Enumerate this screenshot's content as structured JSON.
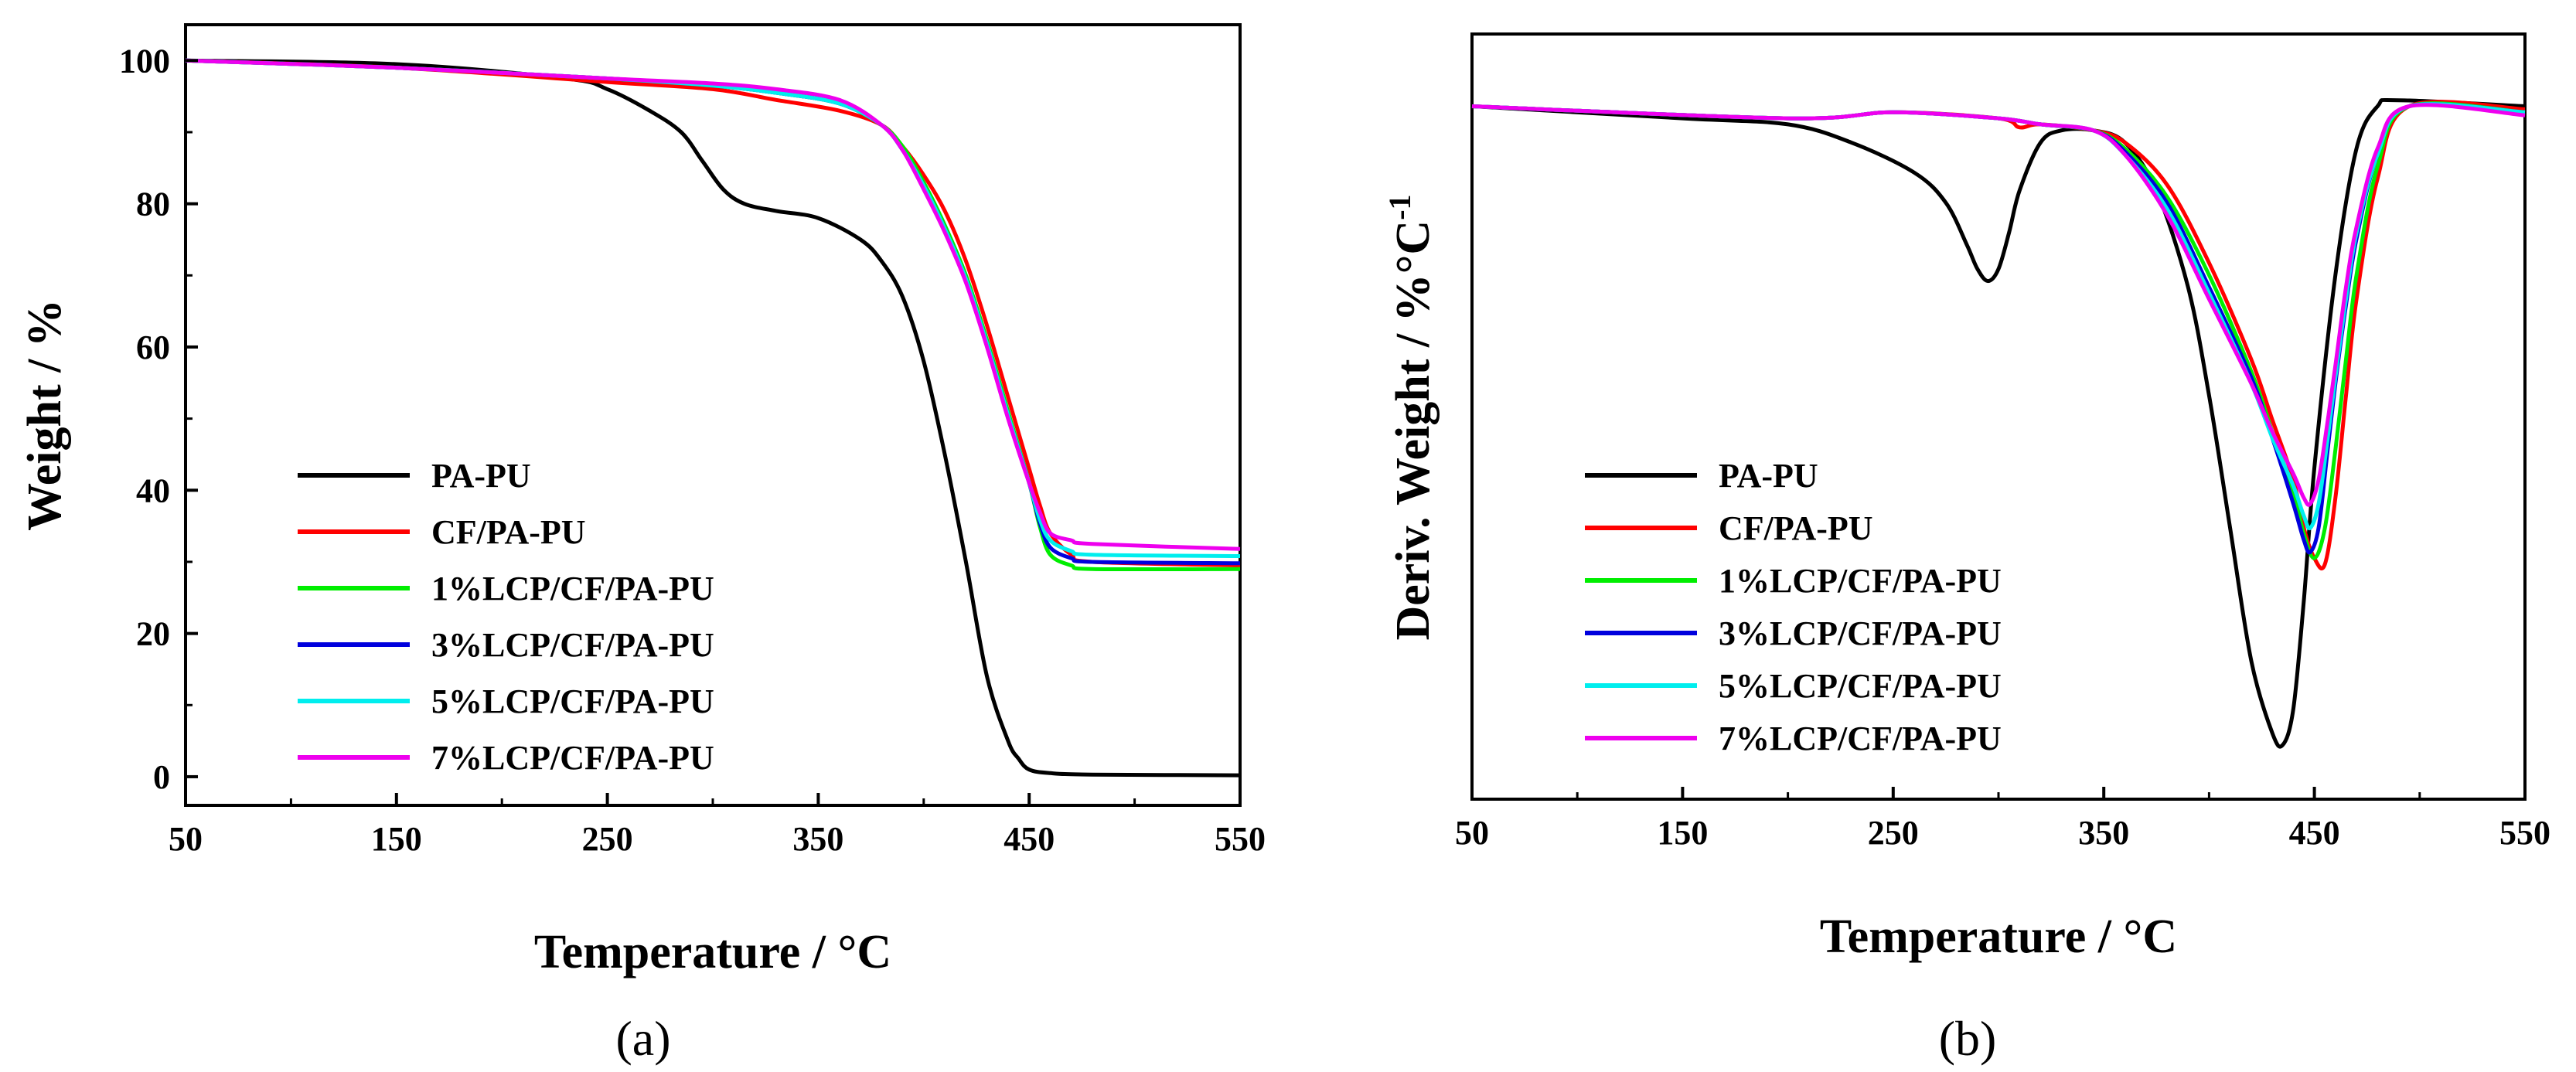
{
  "chart_data": [
    {
      "id": "a",
      "type": "line",
      "panel_label": "(a)",
      "xlabel": "Temperature / °C",
      "ylabel": "Weight / %",
      "xlim": [
        50,
        550
      ],
      "ylim": [
        -4,
        105
      ],
      "xticks": [
        50,
        150,
        250,
        350,
        450,
        550
      ],
      "yticks": [
        0,
        20,
        40,
        60,
        80,
        100
      ],
      "legend_position": "bottom-left",
      "series": [
        {
          "name": "PA-PU",
          "color": "#000000",
          "x": [
            50,
            150,
            230,
            250,
            270,
            285,
            295,
            305,
            315,
            330,
            350,
            370,
            380,
            390,
            400,
            410,
            420,
            430,
            440,
            445,
            450,
            460,
            480,
            550
          ],
          "y": [
            100,
            99.5,
            97.5,
            96,
            93,
            90,
            86,
            82,
            80,
            79,
            78,
            75,
            72,
            67,
            58,
            45,
            30,
            14,
            5,
            2.5,
            1,
            0.5,
            0.3,
            0.2
          ]
        },
        {
          "name": "CF/PA-PU",
          "color": "#ff0000",
          "x": [
            50,
            150,
            250,
            300,
            330,
            360,
            380,
            390,
            400,
            410,
            420,
            430,
            440,
            450,
            455,
            460,
            470,
            480,
            550
          ],
          "y": [
            100,
            99,
            97,
            96,
            94.5,
            93,
            91,
            88,
            84,
            79,
            72,
            63,
            53,
            43,
            38,
            34,
            31,
            30,
            29.5
          ]
        },
        {
          "name": "1%LCP/CF/PA-PU",
          "color": "#00ee00",
          "x": [
            50,
            150,
            250,
            300,
            330,
            360,
            380,
            390,
            400,
            410,
            420,
            430,
            440,
            450,
            455,
            460,
            470,
            480,
            550
          ],
          "y": [
            100,
            99,
            97.5,
            96.5,
            95.5,
            94,
            91,
            88,
            83,
            77,
            70,
            61,
            51,
            41,
            35,
            31,
            29.5,
            29,
            29
          ]
        },
        {
          "name": "3%LCP/CF/PA-PU",
          "color": "#0000dd",
          "x": [
            50,
            150,
            250,
            300,
            330,
            360,
            380,
            390,
            400,
            410,
            420,
            430,
            440,
            450,
            455,
            460,
            470,
            480,
            550
          ],
          "y": [
            100,
            99,
            97.5,
            96.5,
            95.5,
            94,
            91,
            87.5,
            82.5,
            76.5,
            69.5,
            60.5,
            50.5,
            41,
            35.5,
            32,
            30.5,
            30,
            29.8
          ]
        },
        {
          "name": "5%LCP/CF/PA-PU",
          "color": "#00eeee",
          "x": [
            50,
            150,
            250,
            300,
            330,
            360,
            380,
            390,
            400,
            410,
            420,
            430,
            440,
            450,
            455,
            460,
            470,
            480,
            550
          ],
          "y": [
            100,
            99,
            97.5,
            96.5,
            95.5,
            94,
            91,
            87.5,
            82.5,
            76.5,
            69.5,
            60.5,
            50.5,
            41,
            36,
            33,
            31.5,
            31,
            30.8
          ]
        },
        {
          "name": "7%LCP/CF/PA-PU",
          "color": "#ee00ee",
          "x": [
            50,
            150,
            250,
            300,
            330,
            360,
            380,
            390,
            400,
            410,
            420,
            430,
            440,
            450,
            455,
            460,
            470,
            480,
            550
          ],
          "y": [
            100,
            99,
            97.5,
            96.8,
            96,
            94.5,
            91,
            87.5,
            82,
            76,
            69,
            60,
            50,
            41,
            37,
            34,
            33,
            32.5,
            31.8
          ]
        }
      ]
    },
    {
      "id": "b",
      "type": "line",
      "panel_label": "(b)",
      "xlabel": "Temperature / °C",
      "ylabel": "Deriv. Weight / %°C",
      "ylabel_superscript": "-1",
      "xlim": [
        50,
        550
      ],
      "ylim": [
        -1.15,
        0.12
      ],
      "xticks": [
        50,
        150,
        250,
        350,
        450,
        550
      ],
      "yticks": [],
      "legend_position": "bottom-left",
      "series": [
        {
          "name": "PA-PU",
          "color": "#000000",
          "x": [
            50,
            150,
            200,
            230,
            260,
            275,
            285,
            290,
            295,
            300,
            305,
            310,
            320,
            330,
            345,
            360,
            375,
            390,
            400,
            410,
            420,
            430,
            435,
            440,
            445,
            450,
            460,
            470,
            480,
            490,
            550
          ],
          "y": [
            0,
            -0.02,
            -0.03,
            -0.06,
            -0.11,
            -0.16,
            -0.23,
            -0.27,
            -0.29,
            -0.27,
            -0.21,
            -0.14,
            -0.06,
            -0.04,
            -0.04,
            -0.06,
            -0.14,
            -0.3,
            -0.48,
            -0.7,
            -0.92,
            -1.04,
            -1.06,
            -1.0,
            -0.82,
            -0.6,
            -0.28,
            -0.07,
            0,
            0.01,
            0
          ]
        },
        {
          "name": "CF/PA-PU",
          "color": "#ff0000",
          "x": [
            50,
            200,
            250,
            300,
            310,
            320,
            345,
            360,
            380,
            400,
            420,
            430,
            440,
            445,
            450,
            455,
            460,
            465,
            470,
            480,
            495,
            550
          ],
          "y": [
            0,
            -0.02,
            -0.01,
            -0.02,
            -0.035,
            -0.03,
            -0.04,
            -0.06,
            -0.13,
            -0.26,
            -0.42,
            -0.52,
            -0.62,
            -0.7,
            -0.75,
            -0.76,
            -0.65,
            -0.48,
            -0.32,
            -0.12,
            0,
            -0.005
          ]
        },
        {
          "name": "1%LCP/CF/PA-PU",
          "color": "#00ee00",
          "x": [
            50,
            200,
            250,
            300,
            320,
            345,
            360,
            380,
            400,
            420,
            430,
            440,
            445,
            450,
            455,
            460,
            465,
            470,
            480,
            495,
            550
          ],
          "y": [
            0,
            -0.02,
            -0.01,
            -0.02,
            -0.03,
            -0.04,
            -0.07,
            -0.15,
            -0.28,
            -0.44,
            -0.54,
            -0.64,
            -0.71,
            -0.75,
            -0.7,
            -0.57,
            -0.42,
            -0.28,
            -0.1,
            0,
            -0.01
          ]
        },
        {
          "name": "3%LCP/CF/PA-PU",
          "color": "#0000dd",
          "x": [
            50,
            200,
            250,
            300,
            320,
            345,
            360,
            380,
            400,
            420,
            430,
            440,
            445,
            448,
            452,
            456,
            460,
            465,
            470,
            480,
            495,
            550
          ],
          "y": [
            0,
            -0.02,
            -0.01,
            -0.02,
            -0.03,
            -0.04,
            -0.075,
            -0.16,
            -0.3,
            -0.45,
            -0.55,
            -0.66,
            -0.72,
            -0.74,
            -0.7,
            -0.58,
            -0.46,
            -0.33,
            -0.22,
            -0.08,
            0,
            -0.01
          ]
        },
        {
          "name": "5%LCP/CF/PA-PU",
          "color": "#00eeee",
          "x": [
            50,
            200,
            250,
            300,
            320,
            345,
            360,
            380,
            400,
            420,
            430,
            440,
            445,
            448,
            452,
            456,
            460,
            465,
            470,
            480,
            495,
            550
          ],
          "y": [
            0,
            -0.02,
            -0.01,
            -0.02,
            -0.03,
            -0.04,
            -0.08,
            -0.17,
            -0.31,
            -0.46,
            -0.55,
            -0.63,
            -0.68,
            -0.7,
            -0.66,
            -0.56,
            -0.45,
            -0.32,
            -0.21,
            -0.08,
            0,
            -0.01
          ]
        },
        {
          "name": "7%LCP/CF/PA-PU",
          "color": "#ee00ee",
          "x": [
            50,
            200,
            250,
            300,
            320,
            345,
            360,
            380,
            400,
            420,
            430,
            440,
            445,
            448,
            452,
            456,
            460,
            465,
            470,
            480,
            495,
            550
          ],
          "y": [
            0,
            -0.02,
            -0.01,
            -0.02,
            -0.03,
            -0.04,
            -0.08,
            -0.18,
            -0.32,
            -0.46,
            -0.54,
            -0.61,
            -0.65,
            -0.66,
            -0.62,
            -0.53,
            -0.43,
            -0.3,
            -0.2,
            -0.07,
            0,
            -0.015
          ]
        }
      ]
    }
  ]
}
